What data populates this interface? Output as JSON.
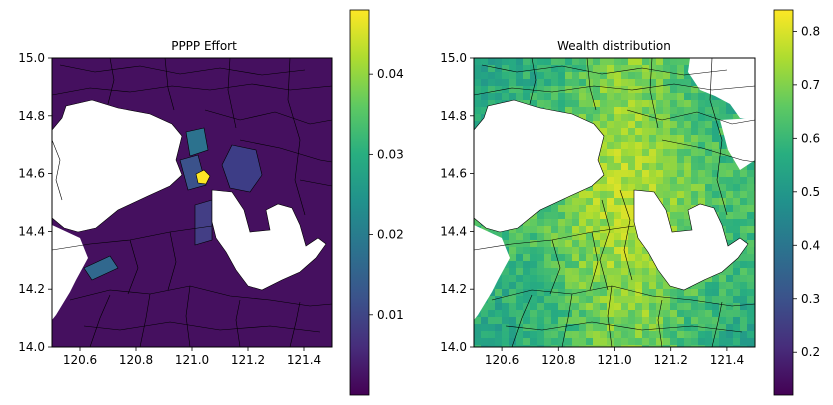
{
  "chart_data": [
    {
      "type": "heatmap",
      "title": "PPPP Effort",
      "xlabel": "",
      "ylabel": "",
      "xlim": [
        120.5,
        121.5
      ],
      "ylim": [
        14.0,
        15.0
      ],
      "xticks": [
        120.6,
        120.8,
        121.0,
        121.2,
        121.4
      ],
      "xtick_labels": [
        "120.6",
        "120.8",
        "121.0",
        "121.2",
        "121.4"
      ],
      "yticks": [
        14.0,
        14.2,
        14.4,
        14.6,
        14.8,
        15.0
      ],
      "ytick_labels": [
        "14.0",
        "14.2",
        "14.4",
        "14.6",
        "14.8",
        "15.0"
      ],
      "colormap": "viridis",
      "colorbar": {
        "range": [
          0.0,
          0.048
        ],
        "ticks": [
          0.01,
          0.02,
          0.03,
          0.04
        ],
        "tick_labels": [
          "0.01",
          "0.02",
          "0.03",
          "0.04"
        ]
      },
      "typical_value": 0.004,
      "hotspot": {
        "lon": 121.05,
        "lat": 14.59,
        "value": 0.048
      },
      "grid": false
    },
    {
      "type": "heatmap",
      "title": "Wealth distribution",
      "xlabel": "",
      "ylabel": "",
      "xlim": [
        120.5,
        121.5
      ],
      "ylim": [
        14.0,
        15.0
      ],
      "xticks": [
        120.6,
        120.8,
        121.0,
        121.2,
        121.4
      ],
      "xtick_labels": [
        "120.6",
        "120.8",
        "121.0",
        "121.2",
        "121.4"
      ],
      "yticks": [
        14.0,
        14.2,
        14.4,
        14.6,
        14.8,
        15.0
      ],
      "ytick_labels": [
        "14.0",
        "14.2",
        "14.4",
        "14.6",
        "14.8",
        "15.0"
      ],
      "colormap": "viridis",
      "colorbar": {
        "range": [
          0.12,
          0.84
        ],
        "ticks": [
          0.2,
          0.3,
          0.4,
          0.5,
          0.6,
          0.7,
          0.8
        ],
        "tick_labels": [
          "0.2",
          "0.3",
          "0.4",
          "0.5",
          "0.6",
          "0.7",
          "0.8"
        ]
      },
      "value_range_shown": [
        0.45,
        0.8
      ],
      "grid": false
    }
  ],
  "colors": {
    "viridis_low": "#440154",
    "viridis_mid": "#21918c",
    "viridis_high": "#fde725",
    "water": "#ffffff",
    "boundary": "#000000"
  }
}
